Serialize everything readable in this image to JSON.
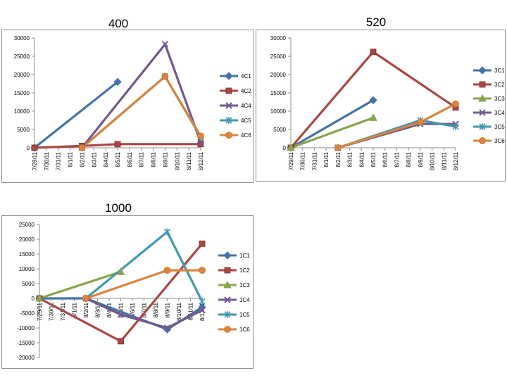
{
  "chart_data": [
    {
      "type": "line",
      "title": "400",
      "xlabel": "",
      "ylabel": "",
      "categories": [
        "7/29/11",
        "7/30/11",
        "7/31/11",
        "8/1/11",
        "8/2/11",
        "8/3/11",
        "8/4/11",
        "8/5/11",
        "8/6/11",
        "8/7/11",
        "8/8/11",
        "8/9/11",
        "8/10/11",
        "8/11/11",
        "8/12/11"
      ],
      "ylim": [
        0,
        30000
      ],
      "yticks": [
        0,
        5000,
        10000,
        15000,
        20000,
        25000,
        30000
      ],
      "grid": false,
      "legend": "right",
      "series": [
        {
          "name": "4C1",
          "color": "#4573a7",
          "marker": "diamond",
          "points": [
            [
              "7/29/11",
              0
            ],
            [
              "8/5/11",
              18000
            ]
          ]
        },
        {
          "name": "4C2",
          "color": "#aa4643",
          "marker": "square",
          "points": [
            [
              "7/29/11",
              0
            ],
            [
              "8/2/11",
              500
            ],
            [
              "8/5/11",
              1000
            ],
            [
              "8/12/11",
              1000
            ]
          ]
        },
        {
          "name": "4C4",
          "color": "#71588f",
          "marker": "x",
          "points": [
            [
              "8/2/11",
              0
            ],
            [
              "8/9/11",
              28300
            ],
            [
              "8/12/11",
              1500
            ]
          ]
        },
        {
          "name": "4C5",
          "color": "#4198af",
          "marker": "star",
          "points": [
            [
              "8/2/11",
              0
            ],
            [
              "8/9/11",
              19500
            ],
            [
              "8/12/11",
              3000
            ]
          ]
        },
        {
          "name": "4C6",
          "color": "#db843d",
          "marker": "circle",
          "points": [
            [
              "8/2/11",
              0
            ],
            [
              "8/9/11",
              19500
            ],
            [
              "8/12/11",
              3200
            ]
          ]
        }
      ]
    },
    {
      "type": "line",
      "title": "520",
      "xlabel": "",
      "ylabel": "",
      "categories": [
        "7/29/11",
        "7/30/11",
        "7/31/11",
        "8/1/11",
        "8/2/11",
        "8/3/11",
        "8/4/11",
        "8/5/11",
        "8/6/11",
        "8/7/11",
        "8/8/11",
        "8/9/11",
        "8/10/11",
        "8/11/11",
        "8/12/11"
      ],
      "ylim": [
        0,
        30000
      ],
      "yticks": [
        0,
        5000,
        10000,
        15000,
        20000,
        25000,
        30000
      ],
      "grid": false,
      "legend": "right",
      "series": [
        {
          "name": "3C1",
          "color": "#4573a7",
          "marker": "diamond",
          "points": [
            [
              "7/29/11",
              0
            ],
            [
              "8/5/11",
              13000
            ]
          ]
        },
        {
          "name": "3C2",
          "color": "#aa4643",
          "marker": "square",
          "points": [
            [
              "7/29/11",
              0
            ],
            [
              "8/5/11",
              26200
            ],
            [
              "8/12/11",
              11000
            ]
          ]
        },
        {
          "name": "3C3",
          "color": "#89a54e",
          "marker": "triangle",
          "points": [
            [
              "7/29/11",
              0
            ],
            [
              "8/5/11",
              8200
            ]
          ]
        },
        {
          "name": "3C4",
          "color": "#71588f",
          "marker": "x",
          "points": [
            [
              "8/2/11",
              0
            ],
            [
              "8/9/11",
              6500
            ],
            [
              "8/12/11",
              6500
            ]
          ]
        },
        {
          "name": "3C5",
          "color": "#4198af",
          "marker": "star",
          "points": [
            [
              "8/2/11",
              0
            ],
            [
              "8/9/11",
              7500
            ],
            [
              "8/12/11",
              5800
            ]
          ]
        },
        {
          "name": "3C6",
          "color": "#db843d",
          "marker": "circle",
          "points": [
            [
              "8/2/11",
              0
            ],
            [
              "8/9/11",
              7000
            ],
            [
              "8/12/11",
              12000
            ]
          ]
        }
      ]
    },
    {
      "type": "line",
      "title": "1000",
      "xlabel": "",
      "ylabel": "",
      "categories": [
        "7/29/11",
        "7/30/11",
        "7/31/11",
        "8/1/11",
        "8/2/11",
        "8/3/11",
        "8/4/11",
        "8/5/11",
        "8/6/11",
        "8/7/11",
        "8/8/11",
        "8/9/11",
        "8/10/11",
        "8/11/11",
        "8/12/11"
      ],
      "ylim": [
        -20000,
        25000
      ],
      "yticks": [
        -20000,
        -15000,
        -10000,
        -5000,
        0,
        5000,
        10000,
        15000,
        20000,
        25000
      ],
      "grid": false,
      "legend": "right",
      "series": [
        {
          "name": "1C1",
          "color": "#4573a7",
          "marker": "diamond",
          "points": [
            [
              "7/29/11",
              0
            ],
            [
              "8/2/11",
              0
            ],
            [
              "8/9/11",
              -10500
            ],
            [
              "8/12/11",
              -3000
            ]
          ]
        },
        {
          "name": "1C2",
          "color": "#aa4643",
          "marker": "square",
          "points": [
            [
              "7/29/11",
              0
            ],
            [
              "8/5/11",
              -14500
            ],
            [
              "8/12/11",
              18500
            ]
          ]
        },
        {
          "name": "1C3",
          "color": "#89a54e",
          "marker": "triangle",
          "points": [
            [
              "7/29/11",
              0
            ],
            [
              "8/5/11",
              9000
            ]
          ]
        },
        {
          "name": "1C4",
          "color": "#71588f",
          "marker": "x",
          "points": [
            [
              "8/2/11",
              0
            ],
            [
              "8/5/11",
              -5500
            ],
            [
              "8/9/11",
              -10000
            ],
            [
              "8/12/11",
              -4000
            ]
          ]
        },
        {
          "name": "1C5",
          "color": "#4198af",
          "marker": "star",
          "points": [
            [
              "8/2/11",
              0
            ],
            [
              "8/9/11",
              22500
            ],
            [
              "8/12/11",
              -1000
            ]
          ]
        },
        {
          "name": "1C6",
          "color": "#db843d",
          "marker": "circle",
          "points": [
            [
              "8/2/11",
              0
            ],
            [
              "8/9/11",
              9500
            ],
            [
              "8/12/11",
              9500
            ]
          ]
        }
      ]
    }
  ]
}
